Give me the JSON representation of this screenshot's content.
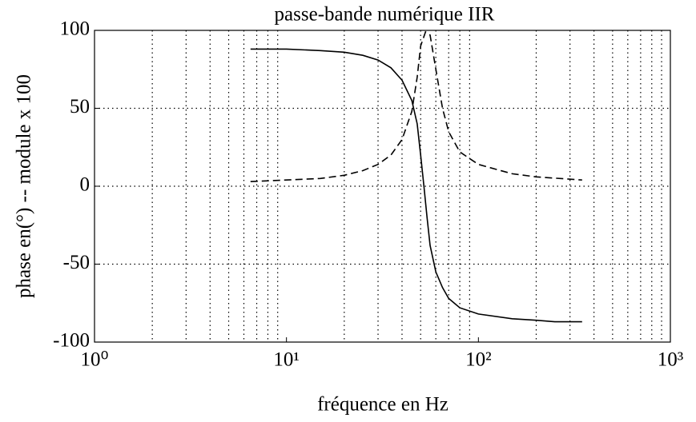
{
  "chart_data": {
    "type": "line",
    "title": "passe-bande numérique IIR",
    "xlabel": "fréquence en Hz",
    "ylabel": "phase en(°) -- module x 100",
    "xscale": "log",
    "xlim": [
      1,
      1000
    ],
    "xticks": [
      {
        "value": 1,
        "label": "10⁰"
      },
      {
        "value": 10,
        "label": "10¹"
      },
      {
        "value": 100,
        "label": "10²"
      },
      {
        "value": 1000,
        "label": "10³"
      }
    ],
    "xminorticks": [
      2,
      3,
      4,
      5,
      6,
      7,
      8,
      9,
      20,
      30,
      40,
      50,
      60,
      70,
      80,
      90,
      200,
      300,
      400,
      500,
      600,
      700,
      800,
      900
    ],
    "ylim": [
      -100,
      100
    ],
    "yticks": [
      -100,
      -50,
      0,
      50,
      100
    ],
    "grid": true,
    "series": [
      {
        "color": "#000000",
        "dash": "solid",
        "x": [
          6.5,
          10,
          15,
          20,
          25,
          30,
          35,
          40,
          45,
          48,
          50,
          52,
          54,
          56,
          60,
          65,
          70,
          80,
          100,
          150,
          200,
          250,
          347
        ],
        "values": [
          88,
          88,
          87,
          86,
          84,
          81,
          76,
          68,
          55,
          40,
          20,
          0,
          -20,
          -38,
          -55,
          -65,
          -72,
          -78,
          -82,
          -85,
          -86,
          -87,
          -87
        ]
      },
      {
        "color": "#000000",
        "dash": "dashed",
        "x": [
          6.5,
          10,
          15,
          20,
          25,
          30,
          35,
          40,
          45,
          48,
          50,
          53,
          56,
          60,
          65,
          70,
          80,
          100,
          150,
          200,
          347
        ],
        "values": [
          3,
          4,
          5,
          7,
          10,
          14,
          20,
          30,
          48,
          70,
          90,
          99,
          97,
          75,
          50,
          35,
          22,
          14,
          8,
          6,
          4
        ]
      }
    ]
  }
}
